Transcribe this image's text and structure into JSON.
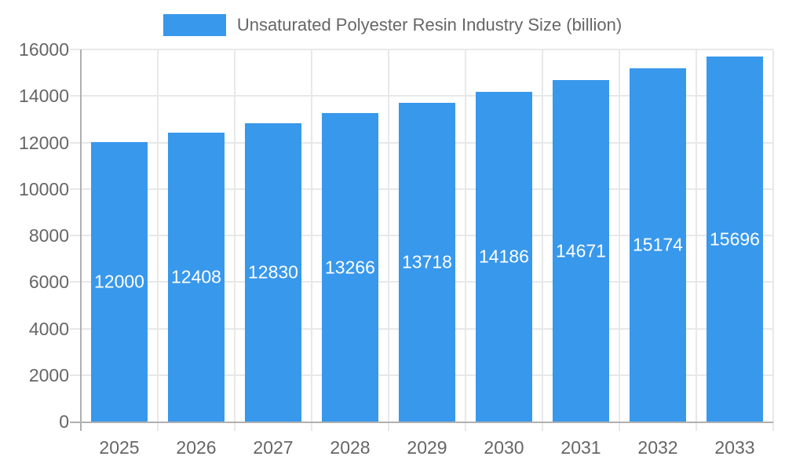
{
  "chart_data": {
    "type": "bar",
    "title": "Unsaturated Polyester Resin Industry Size (billion)",
    "legend": {
      "label": "Unsaturated Polyester Resin Industry Size (billion)",
      "position": "top"
    },
    "categories": [
      "2025",
      "2026",
      "2027",
      "2028",
      "2029",
      "2030",
      "2031",
      "2032",
      "2033"
    ],
    "series": [
      {
        "name": "Unsaturated Polyester Resin Industry Size (billion)",
        "values": [
          12000,
          12408,
          12830,
          13266,
          13718,
          14186,
          14671,
          15174,
          15696
        ]
      }
    ],
    "data_labels": [
      12000,
      12408,
      12830,
      13266,
      13718,
      14186,
      14671,
      15174,
      15696
    ],
    "xlabel": "",
    "ylabel": "",
    "ylim": [
      0,
      16000
    ],
    "ytick_step": 2000,
    "ytick_labels": [
      "0",
      "2000",
      "4000",
      "6000",
      "8000",
      "10000",
      "12000",
      "14000",
      "16000"
    ],
    "grid": true,
    "legend_position": "top",
    "colors": {
      "bar": "#3898EC",
      "grid_line": "#E8E8E8",
      "axis_line": "#B0B0B0",
      "tick_text": "#666666",
      "legend_text": "#666666",
      "data_label_text": "#FFFFFF",
      "background": "#FFFFFF"
    }
  }
}
